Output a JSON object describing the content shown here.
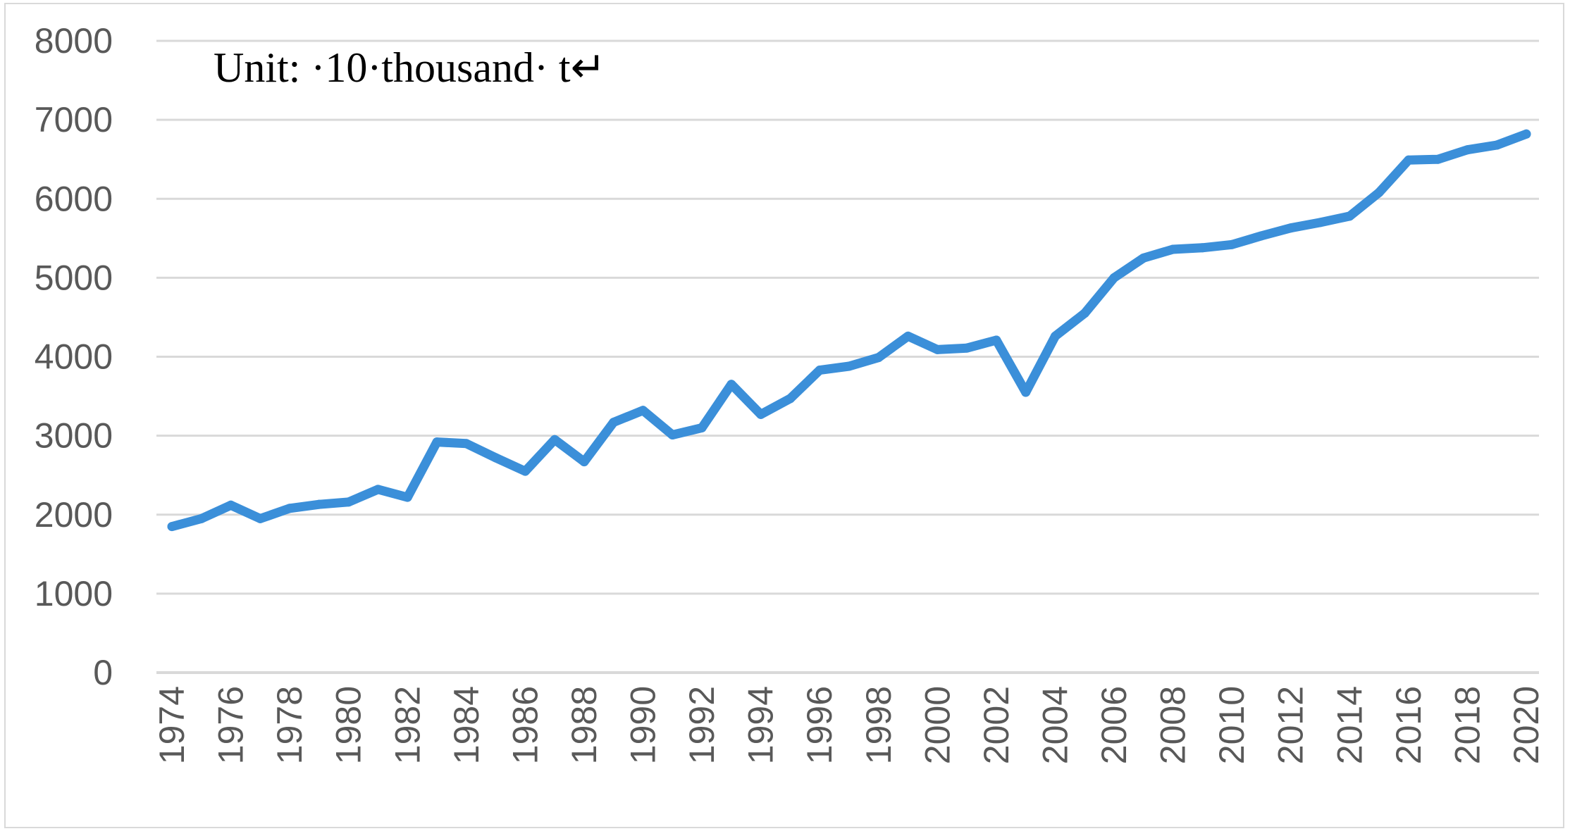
{
  "chart_data": {
    "type": "line",
    "title": "",
    "annotation": "Unit: ·10·thousand· t↵",
    "xlabel": "",
    "ylabel": "",
    "ylim": [
      0,
      8000
    ],
    "yticks": [
      "0",
      "1000",
      "2000",
      "3000",
      "4000",
      "5000",
      "6000",
      "7000",
      "8000"
    ],
    "xtick_labels": [
      "1974",
      "1976",
      "1978",
      "1980",
      "1982",
      "1984",
      "1986",
      "1988",
      "1990",
      "1992",
      "1994",
      "1996",
      "1998",
      "2000",
      "2002",
      "2004",
      "2006",
      "2008",
      "2010",
      "2012",
      "2014",
      "2016",
      "2018",
      "2020"
    ],
    "grid": true,
    "legend": "none",
    "line_color": "#3b8fd9",
    "grid_color": "#d9d9d9",
    "x": [
      1974,
      1975,
      1976,
      1977,
      1978,
      1979,
      1980,
      1981,
      1982,
      1983,
      1984,
      1985,
      1986,
      1987,
      1988,
      1989,
      1990,
      1991,
      1992,
      1993,
      1994,
      1995,
      1996,
      1997,
      1998,
      1999,
      2000,
      2001,
      2002,
      2003,
      2004,
      2005,
      2006,
      2007,
      2008,
      2009,
      2010,
      2011,
      2012,
      2013,
      2014,
      2015,
      2016,
      2017,
      2018,
      2019,
      2020
    ],
    "series": [
      {
        "values": [
          1850,
          1950,
          2120,
          1950,
          2080,
          2130,
          2160,
          2320,
          2220,
          2920,
          2900,
          2720,
          2550,
          2950,
          2670,
          3170,
          3320,
          3010,
          3100,
          3650,
          3270,
          3470,
          3830,
          3880,
          3990,
          4260,
          4090,
          4110,
          4210,
          3550,
          4260,
          4550,
          5000,
          5250,
          5360,
          5380,
          5420,
          5530,
          5630,
          5700,
          5780,
          6080,
          6490,
          6500,
          6620,
          6680,
          6820
        ]
      }
    ]
  }
}
